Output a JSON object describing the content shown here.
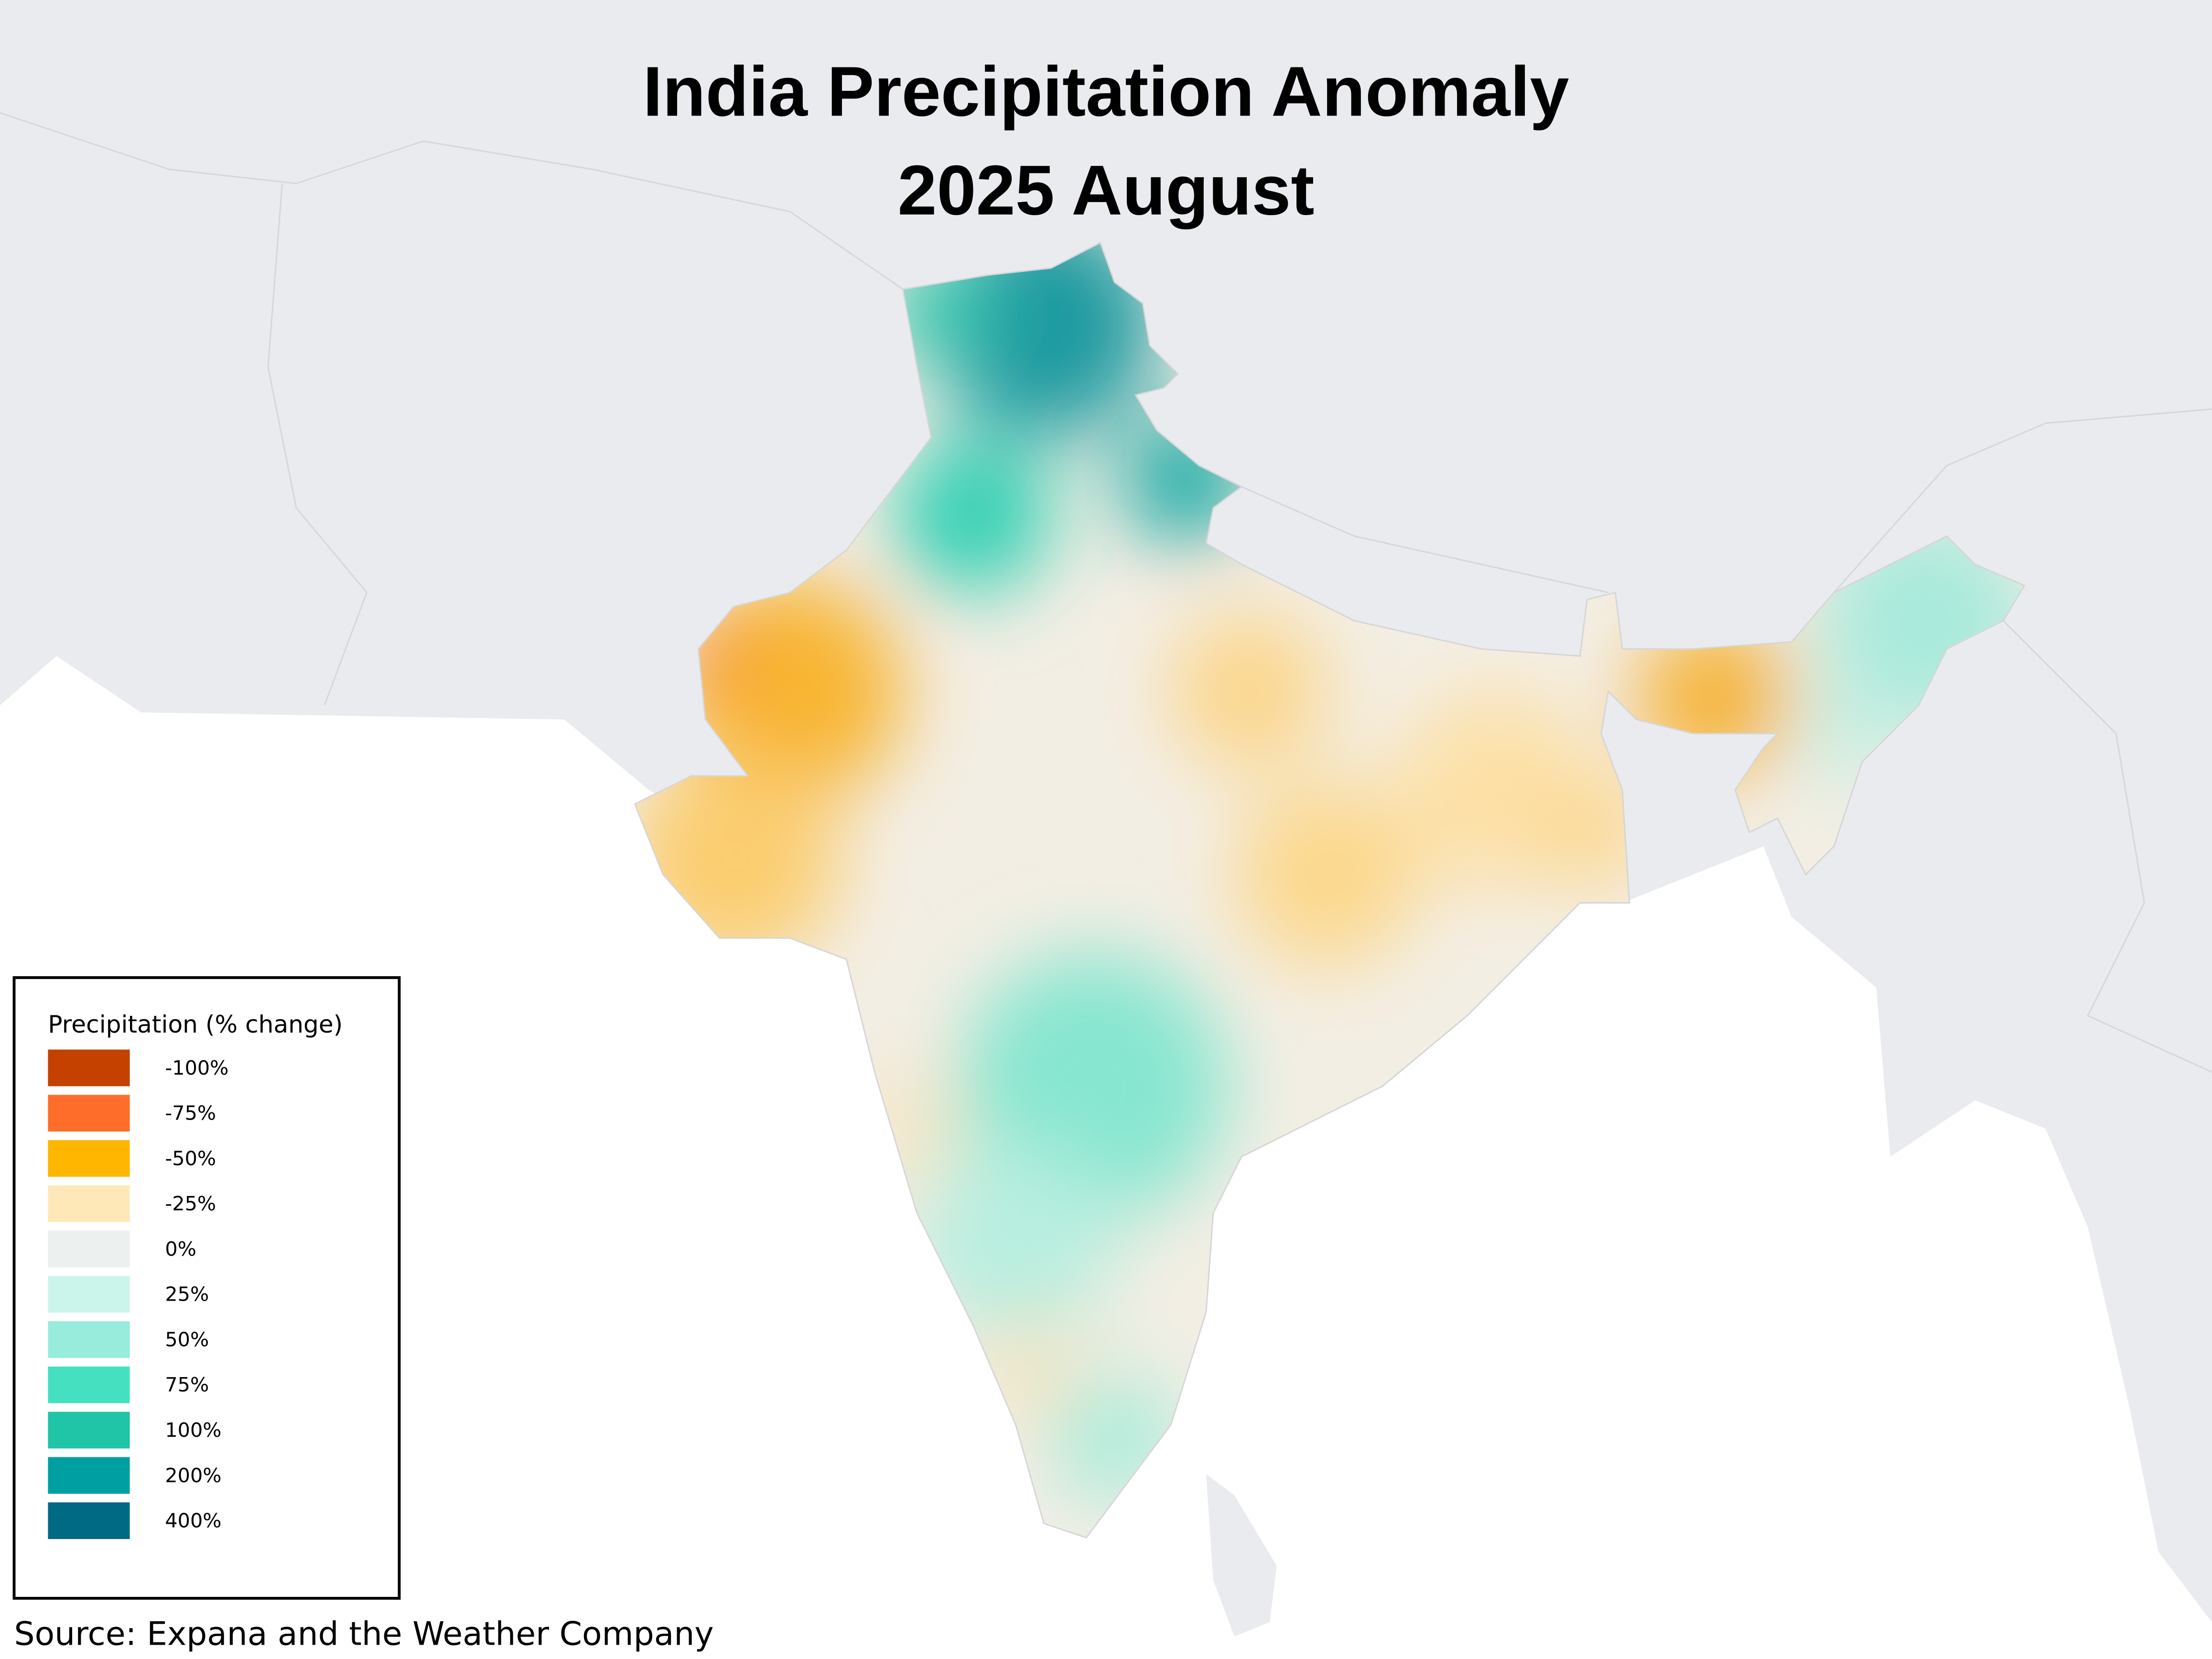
{
  "header": {
    "title_line1": "India Precipitation Anomaly",
    "title_line2": "2025 August"
  },
  "legend": {
    "title": "Precipitation (% change)",
    "items": [
      {
        "label": "-100%",
        "color": "#c44100"
      },
      {
        "label": "-75%",
        "color": "#fe6d2a"
      },
      {
        "label": "-50%",
        "color": "#ffb600"
      },
      {
        "label": "-25%",
        "color": "#ffe8b8"
      },
      {
        "label": "0%",
        "color": "#ecf0ee"
      },
      {
        "label": "25%",
        "color": "#cbf5ea"
      },
      {
        "label": "50%",
        "color": "#97ecdb"
      },
      {
        "label": "75%",
        "color": "#45e0c0"
      },
      {
        "label": "100%",
        "color": "#20c4a6"
      },
      {
        "label": "200%",
        "color": "#00a0a2"
      },
      {
        "label": "400%",
        "color": "#006984"
      }
    ]
  },
  "footer": {
    "source": "Source: Expana and the Weather Company"
  }
}
